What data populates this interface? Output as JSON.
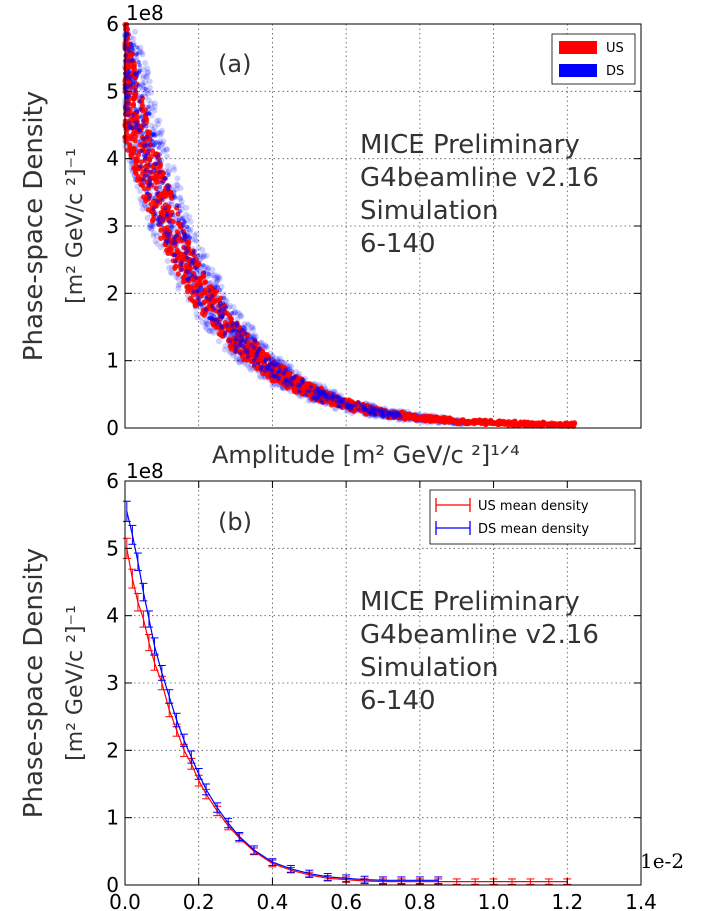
{
  "chart_data": [
    {
      "type": "scatter",
      "panel_label": "(a)",
      "offset_label": "1e8",
      "ylabel_line1": "Phase-space Density",
      "ylabel_line2": "[m² GeV/c ²]⁻¹",
      "xlabel": "Amplitude [m² GeV/c ²]¹ᐟ⁴",
      "yticks": [
        "0",
        "1",
        "2",
        "3",
        "4",
        "5",
        "6"
      ],
      "ylim": [
        0,
        6
      ],
      "xlim": [
        0,
        0.014
      ],
      "grid": true,
      "legend_position": "top-right",
      "annotation": [
        "MICE Preliminary",
        "G4beamline v2.16",
        "Simulation",
        "6-140"
      ],
      "series": [
        {
          "name": "US",
          "color": "#ff0000",
          "x": [
            0.0,
            0.0005,
            0.001,
            0.0015,
            0.002,
            0.003,
            0.004,
            0.005,
            0.006,
            0.007,
            0.008,
            0.009,
            0.01,
            0.011,
            0.012
          ],
          "y": [
            5.2,
            4.1,
            3.3,
            2.65,
            2.1,
            1.35,
            0.85,
            0.55,
            0.35,
            0.22,
            0.15,
            0.1,
            0.08,
            0.06,
            0.05
          ]
        },
        {
          "name": "DS",
          "color": "#0000ff",
          "x": [
            0.0,
            0.0005,
            0.001,
            0.0015,
            0.002,
            0.003,
            0.004,
            0.005,
            0.006,
            0.007,
            0.008,
            0.009
          ],
          "y": [
            5.7,
            4.4,
            3.5,
            2.8,
            2.2,
            1.4,
            0.88,
            0.55,
            0.35,
            0.22,
            0.15,
            0.1
          ]
        }
      ]
    },
    {
      "type": "line",
      "panel_label": "(b)",
      "offset_label": "1e8",
      "ylabel_line1": "Phase-space Density",
      "ylabel_line2": "[m² GeV/c ²]⁻¹",
      "x_offset_label": "1e-2",
      "xticks": [
        "0.0",
        "0.2",
        "0.4",
        "0.6",
        "0.8",
        "1.0",
        "1.2",
        "1.4"
      ],
      "yticks": [
        "0",
        "1",
        "2",
        "3",
        "4",
        "5",
        "6"
      ],
      "xlim": [
        0,
        1.4
      ],
      "ylim": [
        0,
        6
      ],
      "grid": true,
      "legend_position": "top-right",
      "annotation": [
        "MICE Preliminary",
        "G4beamline v2.16",
        "Simulation",
        "6-140"
      ],
      "series": [
        {
          "name": "US mean density",
          "color": "#ff0000",
          "x": [
            0.005,
            0.02,
            0.035,
            0.05,
            0.065,
            0.08,
            0.1,
            0.12,
            0.14,
            0.16,
            0.18,
            0.2,
            0.22,
            0.25,
            0.28,
            0.31,
            0.35,
            0.4,
            0.45,
            0.5,
            0.55,
            0.6,
            0.65,
            0.7,
            0.75,
            0.8,
            0.85,
            0.9,
            0.95,
            1.0,
            1.05,
            1.1,
            1.15,
            1.2
          ],
          "y": [
            5.0,
            4.55,
            4.2,
            3.95,
            3.6,
            3.3,
            3.0,
            2.6,
            2.3,
            2.0,
            1.8,
            1.55,
            1.35,
            1.1,
            0.88,
            0.7,
            0.5,
            0.32,
            0.22,
            0.15,
            0.1,
            0.08,
            0.06,
            0.05,
            0.05,
            0.05,
            0.05,
            0.05,
            0.05,
            0.05,
            0.05,
            0.05,
            0.05,
            0.05
          ],
          "err": [
            0.15,
            0.14,
            0.13,
            0.12,
            0.12,
            0.11,
            0.1,
            0.1,
            0.09,
            0.09,
            0.08,
            0.08,
            0.07,
            0.07,
            0.06,
            0.06,
            0.05,
            0.05,
            0.04,
            0.04,
            0.04,
            0.04,
            0.04,
            0.04,
            0.04,
            0.04,
            0.04,
            0.04,
            0.04,
            0.04,
            0.04,
            0.04,
            0.04,
            0.04
          ]
        },
        {
          "name": "DS mean density",
          "color": "#0000ff",
          "x": [
            0.005,
            0.02,
            0.035,
            0.05,
            0.065,
            0.08,
            0.1,
            0.12,
            0.14,
            0.16,
            0.18,
            0.2,
            0.22,
            0.25,
            0.28,
            0.31,
            0.35,
            0.4,
            0.45,
            0.5,
            0.55,
            0.6,
            0.65,
            0.7,
            0.75,
            0.8,
            0.85
          ],
          "y": [
            5.55,
            5.2,
            4.8,
            4.35,
            3.95,
            3.55,
            3.15,
            2.8,
            2.45,
            2.15,
            1.9,
            1.65,
            1.42,
            1.15,
            0.92,
            0.72,
            0.52,
            0.34,
            0.24,
            0.17,
            0.12,
            0.1,
            0.08,
            0.07,
            0.07,
            0.07,
            0.07
          ],
          "err": [
            0.15,
            0.14,
            0.13,
            0.13,
            0.12,
            0.12,
            0.11,
            0.1,
            0.1,
            0.09,
            0.09,
            0.08,
            0.08,
            0.07,
            0.07,
            0.06,
            0.06,
            0.05,
            0.05,
            0.05,
            0.05,
            0.05,
            0.05,
            0.05,
            0.05,
            0.05,
            0.05
          ]
        }
      ]
    }
  ]
}
